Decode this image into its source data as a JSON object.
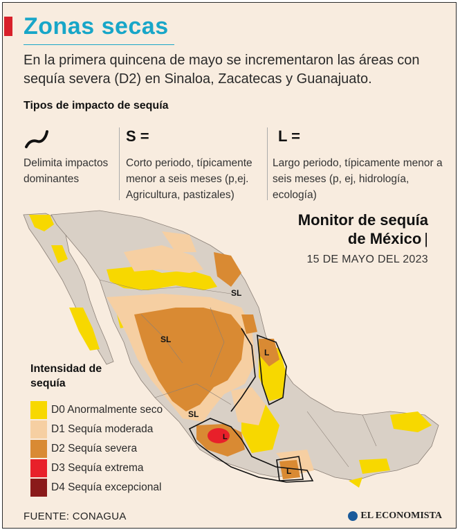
{
  "header": {
    "title": "Zonas secas",
    "subtitle": "En la primera quincena de mayo se incrementaron las áreas con sequía severa (D2) en Sinaloa, Zacatecas y Guanajuato."
  },
  "impact": {
    "heading": "Tipos de impacto de sequía",
    "items": [
      {
        "symbol": "",
        "icon": "curve-line-icon",
        "description": "Delimita impactos dominantes"
      },
      {
        "symbol": "S =",
        "description": "Corto periodo, típicamente menor a seis meses (p,ej. Agricultura, pastizales)"
      },
      {
        "symbol": "L =",
        "description": "Largo periodo, típicamente menor a seis meses (p, ej, hidrología, ecología)"
      }
    ]
  },
  "monitor": {
    "line1": "Monitor de sequía",
    "line2": "de México",
    "separator": "|",
    "date": "15 DE MAYO DEL 2023"
  },
  "legend": {
    "title": "Intensidad de sequía",
    "items": [
      {
        "code": "D0",
        "label": "D0 Anormalmente seco",
        "color": "#f7d800"
      },
      {
        "code": "D1",
        "label": "D1 Sequía moderada",
        "color": "#f6cfa2"
      },
      {
        "code": "D2",
        "label": "D2 Sequía severa",
        "color": "#d98a33"
      },
      {
        "code": "D3",
        "label": "D3 Sequía extrema",
        "color": "#e8202a"
      },
      {
        "code": "D4",
        "label": "D4 Sequía excepcional",
        "color": "#8a1a1a"
      }
    ]
  },
  "map_labels": {
    "sl_north": "SL",
    "sl_west": "SL",
    "sl_south": "SL",
    "l_east": "L",
    "l_red": "L",
    "l_south": "L"
  },
  "colors": {
    "background": "#f8ecdf",
    "no_drought": "#d9d0c6",
    "title_accent": "#18a6c8",
    "title_bar": "#d8202a"
  },
  "footer": {
    "source": "FUENTE: CONAGUA",
    "brand": "EL ECONOMISTA"
  }
}
